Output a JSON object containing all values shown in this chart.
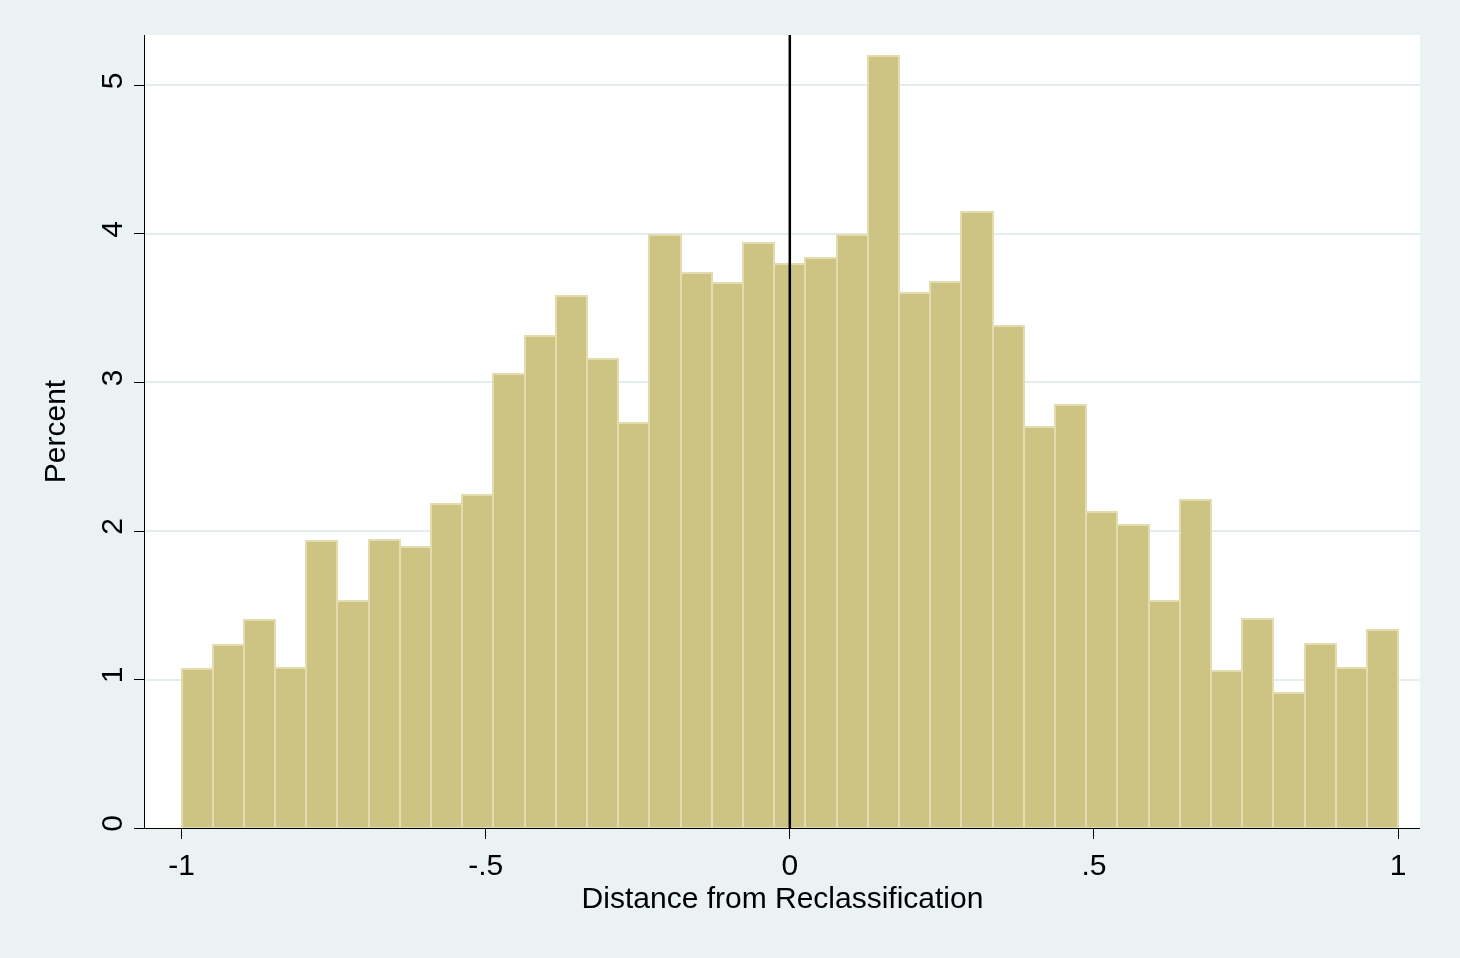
{
  "chart_data": {
    "type": "histogram",
    "xlabel": "Distance from Reclassification",
    "ylabel": "Percent",
    "bins": [
      -1,
      -0.9487,
      -0.8974,
      -0.8462,
      -0.7949,
      -0.7436,
      -0.6923,
      -0.641,
      -0.5897,
      -0.5385,
      -0.4872,
      -0.4359,
      -0.3846,
      -0.3333,
      -0.2821,
      -0.2308,
      -0.1795,
      -0.1282,
      -0.0769,
      -0.0256,
      0.0256,
      0.0769,
      0.1282,
      0.1795,
      0.2308,
      0.2821,
      0.3333,
      0.3846,
      0.4359,
      0.4872,
      0.5385,
      0.5897,
      0.641,
      0.6923,
      0.7436,
      0.7949,
      0.8462,
      0.8974,
      0.9487,
      1
    ],
    "values": [
      1.07,
      1.23,
      1.4,
      1.08,
      1.93,
      1.53,
      1.94,
      1.89,
      2.18,
      2.24,
      3.06,
      3.31,
      3.58,
      3.16,
      2.73,
      3.99,
      3.74,
      3.67,
      3.94,
      3.8,
      3.84,
      3.99,
      5.2,
      3.6,
      3.68,
      4.15,
      3.38,
      2.7,
      2.85,
      2.13,
      2.04,
      1.53,
      2.21,
      1.06,
      1.41,
      0.91,
      1.24,
      1.08,
      1.33
    ],
    "color": "#cdc383",
    "xlim": [
      -1.06,
      1.036
    ],
    "ylim": [
      0,
      5.34
    ],
    "xticks": [
      {
        "value": -1,
        "label": "-1"
      },
      {
        "value": -0.5,
        "label": "-.5"
      },
      0,
      {
        "value": 0.5,
        "label": ".5"
      },
      1
    ],
    "yticks": [
      0,
      1,
      2,
      3,
      4,
      5
    ],
    "grid": "y",
    "ref_lines": [
      {
        "axis": "x",
        "value": 0,
        "color": "#000000"
      }
    ]
  }
}
